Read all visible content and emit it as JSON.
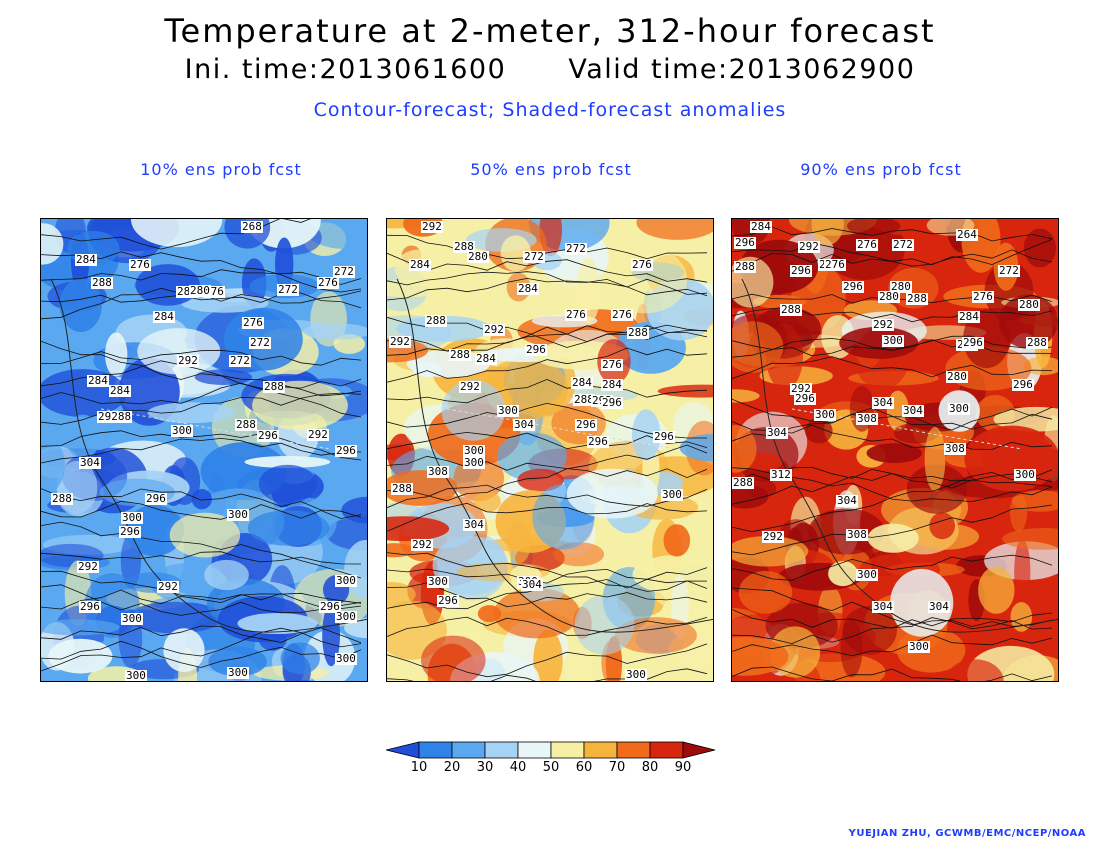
{
  "header": {
    "title": "Temperature at 2-meter, 312-hour forecast",
    "init_time": "Ini. time:2013061600",
    "valid_time": "Valid time:2013062900",
    "description": "Contour-forecast; Shaded-forecast anomalies"
  },
  "panels": [
    {
      "label": "10% ens prob fcst",
      "palette_bias": 0.2,
      "contour_labels": [
        "268",
        "284",
        "276",
        "288",
        "280",
        "276",
        "272",
        "272",
        "276",
        "284",
        "276",
        "272",
        "292",
        "272",
        "284",
        "284",
        "288",
        "29288",
        "288",
        "296",
        "292",
        "300",
        "296",
        "304",
        "288",
        "300",
        "296",
        "300",
        "296",
        "292",
        "296",
        "292",
        "300",
        "300",
        "296",
        "300",
        "300",
        "300",
        "300",
        "280"
      ]
    },
    {
      "label": "50% ens prob fcst",
      "palette_bias": 0.55,
      "contour_labels": [
        "292",
        "288",
        "284",
        "280",
        "272",
        "272",
        "276",
        "284",
        "276",
        "276",
        "288",
        "292",
        "288",
        "276",
        "288",
        "284",
        "296",
        "292",
        "284",
        "292",
        "284",
        "288",
        "292",
        "296",
        "300",
        "304",
        "296",
        "296",
        "300",
        "296",
        "308",
        "300",
        "288",
        "300",
        "304",
        "292",
        "300",
        "300",
        "296",
        "304",
        "300"
      ]
    },
    {
      "label": "90% ens prob fcst",
      "palette_bias": 0.85,
      "contour_labels": [
        "284",
        "296",
        "292",
        "276",
        "272",
        "264",
        "288",
        "296",
        "284",
        "276",
        "280",
        "272",
        "296",
        "280",
        "288",
        "276",
        "280",
        "284",
        "292",
        "300",
        "288",
        "296",
        "288",
        "288",
        "280",
        "292",
        "296",
        "304",
        "304",
        "296",
        "300",
        "308",
        "300",
        "304",
        "312",
        "308",
        "288",
        "292",
        "304",
        "308",
        "300",
        "304",
        "304",
        "300",
        "300"
      ]
    }
  ],
  "colorbar": {
    "ticks": [
      "10",
      "20",
      "30",
      "40",
      "50",
      "60",
      "70",
      "80",
      "90"
    ],
    "colors": [
      "#1f4fd8",
      "#2f82e8",
      "#5aa8f0",
      "#a6d3f5",
      "#e8f6f8",
      "#f6f0a6",
      "#f7b43d",
      "#f06a1a",
      "#d8260e",
      "#9e0b0b"
    ]
  },
  "credit": "YUEJIAN ZHU, GCWMB/EMC/NCEP/NOAA"
}
